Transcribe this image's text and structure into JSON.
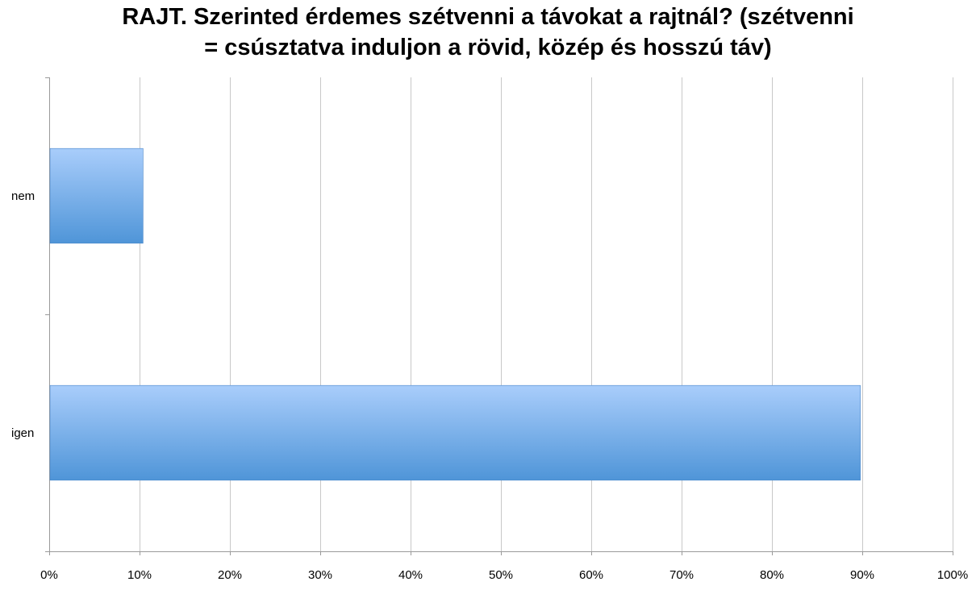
{
  "chart_data": {
    "type": "bar",
    "orientation": "horizontal",
    "title": "RAJT. Szerinted érdemes szétvenni a távokat a rajtnál? (szétvenni\n= csúsztatva induljon a rövid, közép és hosszú táv)",
    "categories": [
      "nem",
      "igen"
    ],
    "values": [
      0.103,
      0.897
    ],
    "xlim": [
      0,
      1
    ],
    "x_ticks": [
      "0%",
      "10%",
      "20%",
      "30%",
      "40%",
      "50%",
      "60%",
      "70%",
      "80%",
      "90%",
      "100%"
    ],
    "grid": true,
    "legend": "none",
    "bar_color_top": "#a9cdfb",
    "bar_color_bottom": "#4f95d8"
  }
}
